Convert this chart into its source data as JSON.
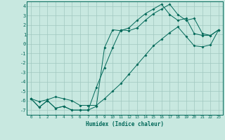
{
  "xlabel": "Humidex (Indice chaleur)",
  "xlim": [
    -0.5,
    23.5
  ],
  "ylim": [
    -7.5,
    4.5
  ],
  "xticks": [
    0,
    1,
    2,
    3,
    4,
    5,
    6,
    7,
    8,
    9,
    10,
    11,
    12,
    13,
    14,
    15,
    16,
    17,
    18,
    19,
    20,
    21,
    22,
    23
  ],
  "yticks": [
    -7,
    -6,
    -5,
    -4,
    -3,
    -2,
    -1,
    0,
    1,
    2,
    3,
    4
  ],
  "background_color": "#c8e8e0",
  "grid_color": "#a0c8c0",
  "line_color": "#006858",
  "line1_x": [
    0,
    1,
    2,
    3,
    4,
    5,
    6,
    7,
    8,
    9,
    10,
    11,
    12,
    13,
    14,
    15,
    16,
    17,
    18,
    19,
    20,
    21,
    22,
    23
  ],
  "line1_y": [
    -5.8,
    -6.7,
    -6.0,
    -6.8,
    -6.6,
    -7.0,
    -7.0,
    -7.0,
    -6.6,
    -0.4,
    1.5,
    1.4,
    1.7,
    2.5,
    3.2,
    3.7,
    4.2,
    3.1,
    2.5,
    2.7,
    1.1,
    0.9,
    0.9,
    1.5
  ],
  "line2_x": [
    0,
    1,
    2,
    3,
    4,
    5,
    6,
    7,
    8,
    9,
    10,
    11,
    12,
    13,
    14,
    15,
    16,
    17,
    18,
    19,
    20,
    21,
    22,
    23
  ],
  "line2_y": [
    -5.8,
    -6.7,
    -6.0,
    -6.8,
    -6.6,
    -7.0,
    -7.0,
    -7.0,
    -4.6,
    -2.5,
    -0.4,
    1.5,
    1.4,
    1.7,
    2.5,
    3.2,
    3.7,
    4.2,
    3.1,
    2.5,
    2.7,
    1.1,
    0.9,
    1.5
  ],
  "line3_x": [
    0,
    1,
    2,
    3,
    4,
    5,
    6,
    7,
    8,
    9,
    10,
    11,
    12,
    13,
    14,
    15,
    16,
    17,
    18,
    19,
    20,
    21,
    22,
    23
  ],
  "line3_y": [
    -5.8,
    -6.1,
    -5.9,
    -5.6,
    -5.8,
    -6.0,
    -6.5,
    -6.5,
    -6.5,
    -5.8,
    -5.0,
    -4.2,
    -3.2,
    -2.2,
    -1.2,
    -0.2,
    0.5,
    1.2,
    1.8,
    0.8,
    -0.2,
    -0.3,
    -0.1,
    1.5
  ]
}
